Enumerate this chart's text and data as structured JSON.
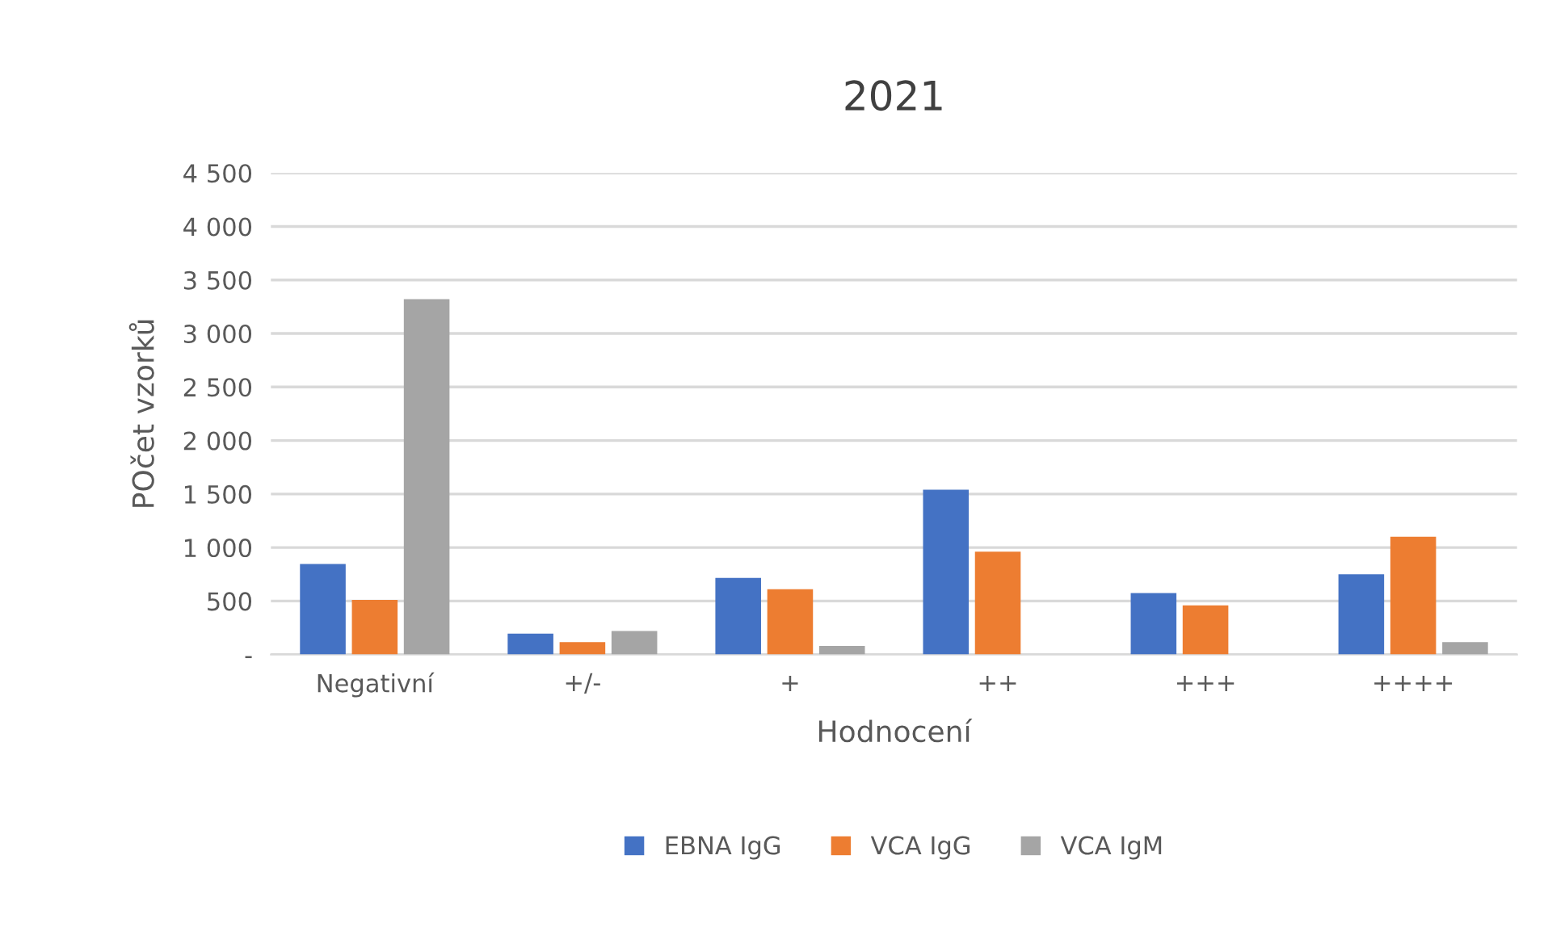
{
  "chart_data": {
    "type": "bar",
    "title": "2021",
    "xlabel": "Hodnocení",
    "ylabel": "POčet vzorků",
    "categories": [
      "Negativní",
      "+/-",
      "+",
      "++",
      "+++",
      "++++"
    ],
    "series": [
      {
        "name": "EBNA IgG",
        "color": "#4472c4",
        "values": [
          845,
          195,
          715,
          1540,
          575,
          750
        ]
      },
      {
        "name": "VCA IgG",
        "color": "#ed7d31",
        "values": [
          510,
          115,
          610,
          960,
          460,
          1100
        ]
      },
      {
        "name": "VCA IgM",
        "color": "#a5a5a5",
        "values": [
          3320,
          220,
          80,
          0,
          0,
          115
        ]
      }
    ],
    "ylim": [
      0,
      4500
    ],
    "yticks": [
      {
        "value": 0,
        "label": "-"
      },
      {
        "value": 500,
        "label": "500"
      },
      {
        "value": 1000,
        "label": "1 000"
      },
      {
        "value": 1500,
        "label": "1 500"
      },
      {
        "value": 2000,
        "label": "2 000"
      },
      {
        "value": 2500,
        "label": "2 500"
      },
      {
        "value": 3000,
        "label": "3 000"
      },
      {
        "value": 3500,
        "label": "3 500"
      },
      {
        "value": 4000,
        "label": "4 000"
      },
      {
        "value": 4500,
        "label": "4 500"
      }
    ],
    "grid": "y",
    "legend": "bottom"
  }
}
